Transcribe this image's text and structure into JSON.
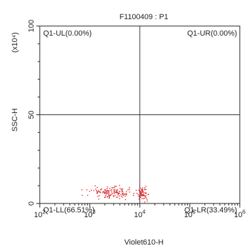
{
  "chart_data": {
    "type": "scatter",
    "title": "F1100409 : P1",
    "xlabel": "Violet610-H",
    "ylabel": "SSC-H",
    "ylabel_scale": "(x10⁴)",
    "x_scale": "log",
    "xlim": [
      100,
      1000000
    ],
    "ylim": [
      0,
      100
    ],
    "x_ticks": [
      {
        "value": 100,
        "base": "10",
        "exp": "2"
      },
      {
        "value": 1000,
        "base": "10",
        "exp": "3"
      },
      {
        "value": 10000,
        "base": "10",
        "exp": "4"
      },
      {
        "value": 100000,
        "base": "10",
        "exp": "5"
      },
      {
        "value": 1000000,
        "base": "10",
        "exp": "6"
      }
    ],
    "y_ticks": [
      {
        "value": 0,
        "label": "0"
      },
      {
        "value": 50,
        "label": "50"
      },
      {
        "value": 100,
        "label": "100"
      }
    ],
    "gate": {
      "x": 10000,
      "y": 50
    },
    "quadrants": [
      {
        "id": "UL",
        "label": "Q1-UL(0.00%)",
        "percent": 0.0
      },
      {
        "id": "UR",
        "label": "Q1-UR(0.00%)",
        "percent": 0.0
      },
      {
        "id": "LL",
        "label": "Q1-LL(66.51%)",
        "percent": 66.51
      },
      {
        "id": "LR",
        "label": "Q1-LR(33.49%)",
        "percent": 33.49
      }
    ],
    "clusters": [
      {
        "name": "LL",
        "x_center": 2600,
        "x_spread_log": 0.22,
        "y_center": 6.5,
        "y_spread": 1.6,
        "count": 140
      },
      {
        "name": "LR",
        "x_center": 11500,
        "x_spread_log": 0.05,
        "y_center": 5.5,
        "y_spread": 1.8,
        "count": 70
      }
    ],
    "grid": false,
    "colors": {
      "dots": "#d9262b",
      "axis": "#222222",
      "gate": "#333333"
    }
  }
}
